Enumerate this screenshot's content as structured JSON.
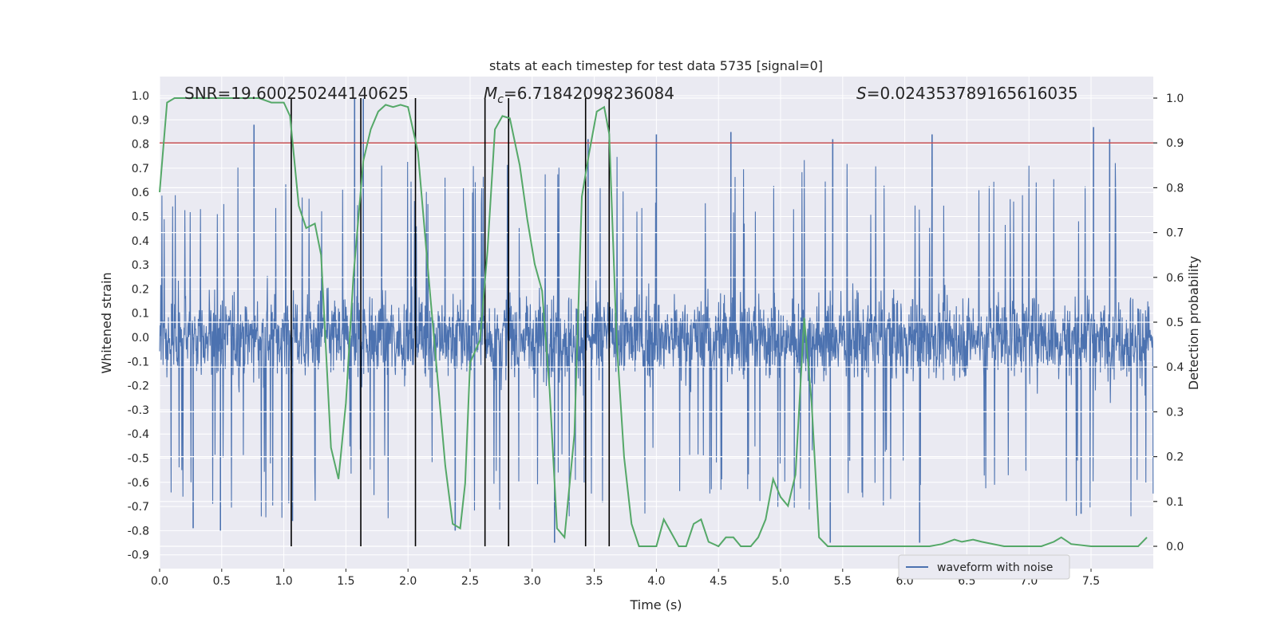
{
  "chart_data": {
    "type": "line",
    "title": "stats at each timestep for test data 5735 [signal=0]",
    "xlabel": "Time (s)",
    "ylabel_left": "Whitened strain",
    "ylabel_right": "Detection probability",
    "xlim": [
      0.0,
      8.0
    ],
    "ylim_left": [
      -0.9,
      1.0
    ],
    "ylim_right": [
      0.0,
      1.0
    ],
    "x_ticks": [
      "0.0",
      "0.5",
      "1.0",
      "1.5",
      "2.0",
      "2.5",
      "3.0",
      "3.5",
      "4.0",
      "4.5",
      "5.0",
      "5.5",
      "6.0",
      "6.5",
      "7.0",
      "7.5"
    ],
    "x_tick_values": [
      0.0,
      0.5,
      1.0,
      1.5,
      2.0,
      2.5,
      3.0,
      3.5,
      4.0,
      4.5,
      5.0,
      5.5,
      6.0,
      6.5,
      7.0,
      7.5
    ],
    "left_ticks": [
      "1.0",
      "0.9",
      "0.8",
      "0.7",
      "0.6",
      "0.5",
      "0.4",
      "0.3",
      "0.2",
      "0.1",
      "0.0",
      "-0.1",
      "-0.2",
      "-0.3",
      "-0.4",
      "-0.5",
      "-0.6",
      "-0.7",
      "-0.8",
      "-0.9"
    ],
    "left_tick_values": [
      1.0,
      0.9,
      0.8,
      0.7,
      0.6,
      0.5,
      0.4,
      0.3,
      0.2,
      0.1,
      0.0,
      -0.1,
      -0.2,
      -0.3,
      -0.4,
      -0.5,
      -0.6,
      -0.7,
      -0.8,
      -0.9
    ],
    "right_ticks": [
      "1.0",
      "0.9",
      "0.8",
      "0.7",
      "0.6",
      "0.5",
      "0.4",
      "0.3",
      "0.2",
      "0.1",
      "0.0"
    ],
    "right_tick_values": [
      1.0,
      0.9,
      0.8,
      0.7,
      0.6,
      0.5,
      0.4,
      0.3,
      0.2,
      0.1,
      0.0
    ],
    "annotations": {
      "snr": "SNR=19.600250244140625",
      "mc_symbol": "M",
      "mc_sub": "c",
      "mc_value": "=6.71842098236084",
      "s_symbol": "S",
      "s_value": "=0.024353789165616035"
    },
    "legend": {
      "label": "waveform with noise",
      "location": "lower-center"
    },
    "series": [
      {
        "name": "waveform with noise",
        "axis": "left",
        "color": "#4C72B0",
        "description": "dense noisy strain, typical envelope about -0.55 to 0.55 with sparse spikes",
        "spikes": [
          {
            "t": 0.76,
            "v": 0.88
          },
          {
            "t": 1.57,
            "v": 0.99
          },
          {
            "t": 1.64,
            "v": 0.99
          },
          {
            "t": 0.27,
            "v": -0.79
          },
          {
            "t": 0.49,
            "v": -0.8
          },
          {
            "t": 1.07,
            "v": -0.76
          },
          {
            "t": 2.38,
            "v": -0.8
          },
          {
            "t": 3.18,
            "v": -0.85
          },
          {
            "t": 3.45,
            "v": 0.82
          },
          {
            "t": 4.0,
            "v": 0.84
          },
          {
            "t": 4.6,
            "v": 0.85
          },
          {
            "t": 5.42,
            "v": 0.82
          },
          {
            "t": 6.22,
            "v": 0.84
          },
          {
            "t": 5.4,
            "v": -0.85
          },
          {
            "t": 6.12,
            "v": -0.85
          },
          {
            "t": 7.52,
            "v": 0.87
          },
          {
            "t": 7.65,
            "v": 0.82
          },
          {
            "t": 7.42,
            "v": -0.73
          }
        ]
      },
      {
        "name": "detection probability",
        "axis": "right",
        "color": "#55A868",
        "points": [
          [
            0.0,
            0.79
          ],
          [
            0.06,
            0.99
          ],
          [
            0.12,
            1.0
          ],
          [
            0.3,
            1.0
          ],
          [
            0.6,
            1.0
          ],
          [
            0.8,
            1.0
          ],
          [
            0.9,
            0.99
          ],
          [
            1.0,
            0.99
          ],
          [
            1.05,
            0.96
          ],
          [
            1.12,
            0.76
          ],
          [
            1.18,
            0.71
          ],
          [
            1.25,
            0.72
          ],
          [
            1.3,
            0.65
          ],
          [
            1.38,
            0.22
          ],
          [
            1.44,
            0.15
          ],
          [
            1.5,
            0.32
          ],
          [
            1.56,
            0.6
          ],
          [
            1.64,
            0.86
          ],
          [
            1.7,
            0.93
          ],
          [
            1.76,
            0.97
          ],
          [
            1.82,
            0.985
          ],
          [
            1.88,
            0.98
          ],
          [
            1.94,
            0.985
          ],
          [
            2.0,
            0.98
          ],
          [
            2.08,
            0.88
          ],
          [
            2.16,
            0.62
          ],
          [
            2.24,
            0.37
          ],
          [
            2.3,
            0.18
          ],
          [
            2.36,
            0.05
          ],
          [
            2.42,
            0.04
          ],
          [
            2.46,
            0.14
          ],
          [
            2.5,
            0.41
          ],
          [
            2.58,
            0.46
          ],
          [
            2.64,
            0.66
          ],
          [
            2.7,
            0.93
          ],
          [
            2.76,
            0.96
          ],
          [
            2.82,
            0.955
          ],
          [
            2.9,
            0.85
          ],
          [
            2.96,
            0.73
          ],
          [
            3.02,
            0.63
          ],
          [
            3.08,
            0.57
          ],
          [
            3.14,
            0.35
          ],
          [
            3.2,
            0.04
          ],
          [
            3.26,
            0.02
          ],
          [
            3.34,
            0.25
          ],
          [
            3.4,
            0.78
          ],
          [
            3.46,
            0.88
          ],
          [
            3.52,
            0.97
          ],
          [
            3.58,
            0.98
          ],
          [
            3.62,
            0.92
          ],
          [
            3.68,
            0.46
          ],
          [
            3.74,
            0.2
          ],
          [
            3.8,
            0.05
          ],
          [
            3.86,
            0.0
          ],
          [
            3.93,
            0.0
          ],
          [
            4.0,
            0.0
          ],
          [
            4.06,
            0.06
          ],
          [
            4.12,
            0.03
          ],
          [
            4.18,
            0.0
          ],
          [
            4.24,
            0.0
          ],
          [
            4.3,
            0.05
          ],
          [
            4.36,
            0.06
          ],
          [
            4.42,
            0.01
          ],
          [
            4.5,
            0.0
          ],
          [
            4.56,
            0.02
          ],
          [
            4.62,
            0.02
          ],
          [
            4.68,
            0.0
          ],
          [
            4.76,
            0.0
          ],
          [
            4.82,
            0.02
          ],
          [
            4.88,
            0.06
          ],
          [
            4.94,
            0.15
          ],
          [
            5.0,
            0.11
          ],
          [
            5.06,
            0.09
          ],
          [
            5.12,
            0.16
          ],
          [
            5.19,
            0.51
          ],
          [
            5.25,
            0.32
          ],
          [
            5.31,
            0.02
          ],
          [
            5.38,
            0.0
          ],
          [
            5.5,
            0.0
          ],
          [
            5.7,
            0.0
          ],
          [
            5.9,
            0.0
          ],
          [
            6.2,
            0.0
          ],
          [
            6.3,
            0.005
          ],
          [
            6.4,
            0.015
          ],
          [
            6.46,
            0.01
          ],
          [
            6.55,
            0.015
          ],
          [
            6.62,
            0.01
          ],
          [
            6.8,
            0.0
          ],
          [
            7.1,
            0.0
          ],
          [
            7.2,
            0.01
          ],
          [
            7.26,
            0.02
          ],
          [
            7.34,
            0.005
          ],
          [
            7.5,
            0.0
          ],
          [
            7.7,
            0.0
          ],
          [
            7.88,
            0.0
          ],
          [
            7.95,
            0.02
          ]
        ]
      },
      {
        "name": "threshold",
        "axis": "right",
        "color": "#C44E52",
        "value": 0.9
      }
    ],
    "event_lines_t": [
      1.06,
      1.62,
      2.06,
      2.62,
      2.81,
      3.43,
      3.62
    ]
  }
}
